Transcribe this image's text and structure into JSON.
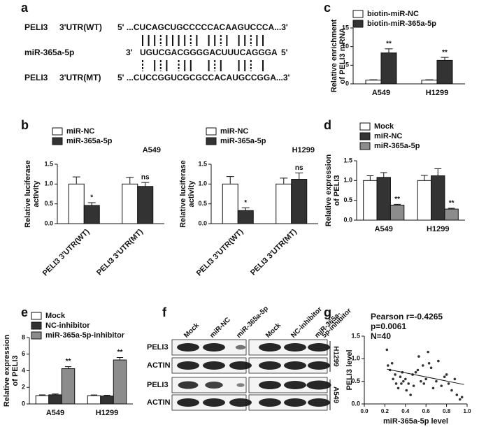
{
  "panel_labels": [
    "a",
    "b",
    "c",
    "d",
    "e",
    "f",
    "g"
  ],
  "sequences": [
    {
      "name": "PELI3",
      "label": "3'UTR(WT)",
      "seq": "5' ...CUCAGCUGCCCCCACAAGUCCCA...3'"
    },
    {
      "name": "miR-365a-5p",
      "end3": "3'",
      "seq": "UGUCGACGGGGACUUUCAGGGA",
      "end5": "5'"
    },
    {
      "name": "PELI3",
      "label": "3'UTR(MT)",
      "seq": "5' ...CUCCGGUCGCGCCACAUGCCGGA...3'"
    }
  ],
  "blot": {
    "lanes": [
      [
        "Mock"
      ],
      [
        "miR-NC"
      ],
      [
        "miR-365a-5p"
      ],
      [
        "Mock"
      ],
      [
        "NC-inhibitor"
      ],
      [
        "miR-365a-",
        "5p-inhibitor"
      ]
    ],
    "rows": [
      "PELI3",
      "ACTIN",
      "PELI3",
      "ACTIN"
    ],
    "cell_lines": [
      "H1299",
      "A549"
    ]
  },
  "chart_data": [
    {
      "type": "bar",
      "ylabel": [
        "Relative enrichment",
        "of PELI3 mRNA"
      ],
      "categories": [
        "A549",
        "H1299"
      ],
      "series": [
        {
          "name": "biotin-miR-NC",
          "color": "#ffffff",
          "values": [
            1.0,
            1.0
          ],
          "errors": [
            0.1,
            0.1
          ]
        },
        {
          "name": "biotin-miR-365a-5p",
          "color": "#333333",
          "values": [
            8.3,
            6.3
          ],
          "errors": [
            1.1,
            0.8
          ],
          "signif": [
            "**",
            "**"
          ]
        }
      ],
      "ylim": [
        0,
        15
      ],
      "yticks": [
        0,
        5,
        10,
        15
      ]
    },
    {
      "type": "bar",
      "title": "A549",
      "ylabel": [
        "Relative luciferase",
        "activity"
      ],
      "rotate_categories": true,
      "categories": [
        "PELI3 3'UTR(WT)",
        "PELI3 3'UTR(MT)"
      ],
      "series": [
        {
          "name": "miR-NC",
          "color": "#ffffff",
          "values": [
            1.0,
            1.0
          ],
          "errors": [
            0.18,
            0.17
          ]
        },
        {
          "name": "miR-365a-5p",
          "color": "#333333",
          "values": [
            0.46,
            0.94
          ],
          "errors": [
            0.07,
            0.1
          ],
          "signif": [
            "*",
            "ns"
          ]
        }
      ],
      "ylim": [
        0,
        1.5
      ],
      "yticks": [
        {
          "value": 0,
          "label": "0.0"
        },
        0.5,
        {
          "value": 1,
          "label": "1.0"
        },
        1.5
      ]
    },
    {
      "type": "bar",
      "title": "H1299",
      "ylabel": [
        "Relative luciferase",
        "activity"
      ],
      "rotate_categories": true,
      "categories": [
        "PELI3 3'UTR(WT)",
        "PELI3 3'UTR(MT)"
      ],
      "series": [
        {
          "name": "miR-NC",
          "color": "#ffffff",
          "values": [
            1.0,
            1.0
          ],
          "errors": [
            0.19,
            0.15
          ]
        },
        {
          "name": "miR-365a-5p",
          "color": "#333333",
          "values": [
            0.33,
            1.12
          ],
          "errors": [
            0.07,
            0.16
          ],
          "signif": [
            "*",
            "ns"
          ]
        }
      ],
      "ylim": [
        0,
        1.5
      ],
      "yticks": [
        {
          "value": 0,
          "label": "0.0"
        },
        0.5,
        {
          "value": 1,
          "label": "1.0"
        },
        1.5
      ]
    },
    {
      "type": "bar",
      "ylabel": [
        "Relative expression",
        "of PELI3"
      ],
      "categories": [
        "A549",
        "H1299"
      ],
      "series": [
        {
          "name": "Mock",
          "color": "#ffffff",
          "values": [
            1.0,
            1.0
          ],
          "errors": [
            0.12,
            0.13
          ]
        },
        {
          "name": "miR-NC",
          "color": "#333333",
          "values": [
            1.08,
            1.12
          ],
          "errors": [
            0.12,
            0.18
          ]
        },
        {
          "name": "miR-365a-5p",
          "color": "#8c8c8c",
          "values": [
            0.38,
            0.28
          ],
          "errors": [
            0.02,
            0.02
          ],
          "signif": [
            "**",
            "**"
          ]
        }
      ],
      "ylim": [
        0,
        1.5
      ],
      "yticks": [
        {
          "value": 0,
          "label": "0.0"
        },
        0.5,
        {
          "value": 1,
          "label": "1.0"
        },
        1.5
      ]
    },
    {
      "type": "bar",
      "ylabel": [
        "Relative expression",
        "of PELI3"
      ],
      "categories": [
        "A549",
        "H1299"
      ],
      "series": [
        {
          "name": "Mock",
          "color": "#ffffff",
          "values": [
            1.0,
            1.0
          ],
          "errors": [
            0.1,
            0.08
          ]
        },
        {
          "name": "NC-inhibitor",
          "color": "#333333",
          "values": [
            1.1,
            0.95
          ],
          "errors": [
            0.1,
            0.1
          ]
        },
        {
          "name": "miR-365a-5p-inhibitor",
          "color": "#8c8c8c",
          "values": [
            4.25,
            5.3
          ],
          "errors": [
            0.25,
            0.3
          ],
          "signif": [
            "**",
            "**"
          ]
        }
      ],
      "ylim": [
        0,
        8
      ],
      "yticks": [
        0,
        2,
        4,
        6,
        8
      ]
    },
    {
      "type": "scatter",
      "annotations": [
        "Pearson r=-0.4265",
        "p=0.0061",
        "N=40"
      ],
      "xlabel": "miR-365a-5p level",
      "ylabel": [
        "PELI3 level"
      ],
      "color": "#333333",
      "x": [
        0.22,
        0.23,
        0.25,
        0.27,
        0.28,
        0.3,
        0.31,
        0.33,
        0.35,
        0.36,
        0.37,
        0.38,
        0.4,
        0.41,
        0.43,
        0.45,
        0.47,
        0.48,
        0.5,
        0.52,
        0.53,
        0.55,
        0.57,
        0.58,
        0.6,
        0.62,
        0.63,
        0.65,
        0.67,
        0.7,
        0.72,
        0.75,
        0.78,
        0.8,
        0.82,
        0.85,
        0.88,
        0.9,
        0.93,
        0.95
      ],
      "values": [
        1.2,
        0.85,
        0.75,
        0.9,
        0.55,
        0.65,
        0.45,
        0.35,
        0.6,
        0.45,
        0.7,
        0.5,
        0.55,
        0.3,
        0.45,
        0.2,
        0.65,
        0.4,
        0.7,
        0.75,
        1.05,
        0.5,
        0.85,
        0.45,
        0.55,
        1.15,
        0.9,
        0.8,
        0.35,
        0.5,
        0.95,
        0.4,
        0.6,
        0.65,
        0.45,
        0.3,
        0.55,
        0.2,
        0.1,
        0.15
      ],
      "fit": {
        "x": [
          0.22,
          0.97
        ],
        "y": [
          0.77,
          0.43
        ]
      },
      "xlim": [
        0,
        1
      ],
      "xticks": [
        {
          "value": 0,
          "label": "0.0"
        },
        0.2,
        0.4,
        0.6,
        0.8,
        {
          "value": 1,
          "label": "1.0"
        }
      ],
      "ylim": [
        0,
        1.5
      ],
      "yticks": [
        {
          "value": 0,
          "label": "0.0"
        },
        0.5,
        {
          "value": 1,
          "label": "1.0"
        },
        1.5
      ]
    }
  ]
}
